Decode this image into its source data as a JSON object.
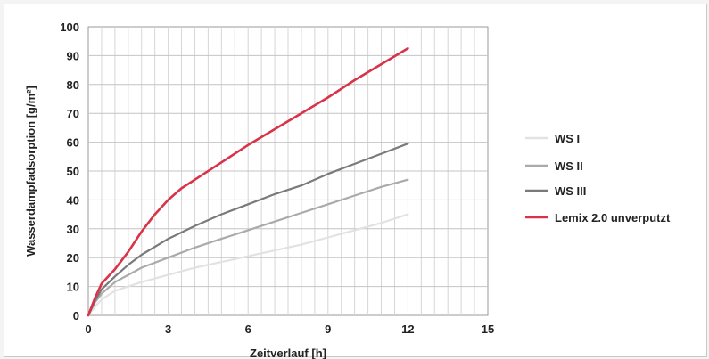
{
  "chart_data": {
    "type": "line",
    "xlabel": "Zeitverlauf [h]",
    "ylabel": "Wasserdampfadsorption [g/m²]",
    "xlim": [
      0,
      15
    ],
    "ylim": [
      0,
      100
    ],
    "x_ticks": [
      0,
      3,
      6,
      9,
      12,
      15
    ],
    "y_ticks": [
      0,
      10,
      20,
      30,
      40,
      50,
      60,
      70,
      80,
      90,
      100
    ],
    "grid": true,
    "legend_position": "right",
    "series": [
      {
        "name": "WS I",
        "color": "#e2e2e2",
        "x": [
          0,
          0.25,
          0.5,
          1,
          1.5,
          2,
          3,
          4,
          5,
          6,
          7,
          8,
          9,
          10,
          11,
          12
        ],
        "y": [
          0,
          3,
          5.5,
          8.5,
          10,
          11.5,
          14,
          16.5,
          18.5,
          20.5,
          22.5,
          24.5,
          27,
          29.5,
          32,
          35
        ]
      },
      {
        "name": "WS II",
        "color": "#aaaaaa",
        "x": [
          0,
          0.25,
          0.5,
          1,
          1.5,
          2,
          3,
          4,
          5,
          6,
          7,
          8,
          9,
          10,
          11,
          12
        ],
        "y": [
          0,
          4.5,
          7.5,
          11.5,
          14,
          16.5,
          20,
          23.5,
          26.5,
          29.5,
          32.5,
          35.5,
          38.5,
          41.5,
          44.5,
          47
        ]
      },
      {
        "name": "WS III",
        "color": "#7a7a7a",
        "x": [
          0,
          0.25,
          0.5,
          1,
          1.5,
          2,
          3,
          4,
          5,
          6,
          7,
          8,
          9,
          10,
          11,
          12
        ],
        "y": [
          0,
          5,
          9,
          13.5,
          17.5,
          21,
          26.5,
          31,
          35,
          38.5,
          42,
          45,
          49,
          52.5,
          56,
          59.5
        ]
      },
      {
        "name": "Lemix 2.0 unverputzt",
        "color": "#d83348",
        "x": [
          0,
          0.25,
          0.5,
          1,
          1.5,
          2,
          2.5,
          3,
          3.5,
          4,
          5,
          6,
          7,
          8,
          9,
          10,
          11,
          12
        ],
        "y": [
          0,
          6,
          11,
          16,
          22,
          29,
          35,
          40,
          44,
          47,
          53,
          59,
          64.5,
          70,
          75.5,
          81.5,
          87,
          92.5
        ]
      }
    ]
  }
}
